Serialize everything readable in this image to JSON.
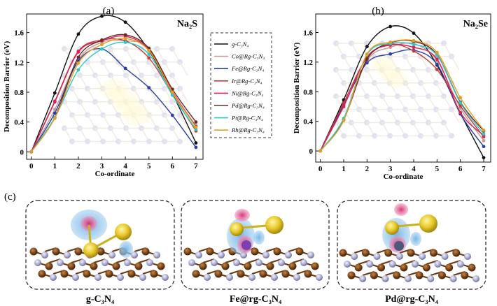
{
  "panels": {
    "a_label": "(a)",
    "b_label": "(b)",
    "c_label": "(c)"
  },
  "legend": {
    "entries": [
      {
        "label": "g-C₃N₄",
        "color": "#111111"
      },
      {
        "label": "Co@Rg-C₃N₄",
        "color": "#c89a8e"
      },
      {
        "label": "Fe@Rg-C₃N₄",
        "color": "#2b3fa6"
      },
      {
        "label": "Ir@Rg-C₃N₄",
        "color": "#c23a3a"
      },
      {
        "label": "Ni@Rg-C₃N₄",
        "color": "#d8205a"
      },
      {
        "label": "Pd@Rg-C₃N₄",
        "color": "#6b2a2a"
      },
      {
        "label": "Pt@Rg-C₃N₄",
        "color": "#2ec6c6"
      },
      {
        "label": "Rh@Rg-C₃N₄",
        "color": "#e0a020"
      }
    ]
  },
  "chart_data": [
    {
      "type": "line",
      "title": "Na₂S",
      "xlabel": "Co-ordinate",
      "ylabel": "Decomposition Barrier (eV)",
      "xlim": [
        -0.2,
        7.3
      ],
      "ylim": [
        -0.1,
        1.85
      ],
      "x": [
        0,
        1,
        2,
        3,
        4,
        5,
        6,
        7
      ],
      "xticks": [
        "0",
        "1",
        "2",
        "3",
        "4",
        "5",
        "6",
        "7"
      ],
      "yticks": [
        "0",
        "0.4",
        "0.8",
        "1.2",
        "1.6"
      ],
      "ytick_values": [
        0,
        0.4,
        0.8,
        1.2,
        1.6
      ],
      "series": [
        {
          "name": "g-C₃N₄",
          "values": [
            0,
            0.79,
            1.58,
            1.82,
            1.74,
            1.36,
            0.78,
            0.12
          ]
        },
        {
          "name": "Co@Rg-C₃N₄",
          "values": [
            0,
            0.57,
            1.24,
            1.47,
            1.49,
            1.39,
            0.79,
            0.35
          ]
        },
        {
          "name": "Fe@Rg-C₃N₄",
          "values": [
            0,
            0.52,
            1.22,
            1.38,
            1.12,
            0.86,
            0.49,
            0.06
          ]
        },
        {
          "name": "Ir@Rg-C₃N₄",
          "values": [
            0,
            0.68,
            1.35,
            1.5,
            1.49,
            1.26,
            0.77,
            0.28
          ]
        },
        {
          "name": "Ni@Rg-C₃N₄",
          "values": [
            0,
            0.67,
            1.34,
            1.49,
            1.55,
            1.37,
            0.81,
            0.34
          ]
        },
        {
          "name": "Pd@Rg-C₃N₄",
          "values": [
            0,
            0.46,
            1.27,
            1.5,
            1.57,
            1.39,
            0.84,
            0.4
          ]
        },
        {
          "name": "Pt@Rg-C₃N₄",
          "values": [
            0,
            0.46,
            1.1,
            1.38,
            1.47,
            1.31,
            0.76,
            0.3
          ]
        },
        {
          "name": "Rh@Rg-C₃N₄",
          "values": [
            0,
            0.45,
            1.19,
            1.44,
            1.52,
            1.36,
            0.8,
            0.33
          ]
        }
      ]
    },
    {
      "type": "line",
      "title": "Na₂Se",
      "xlabel": "Co-ordinate",
      "ylabel": "Decomposition Barrier (eV)",
      "xlim": [
        -0.2,
        7.3
      ],
      "ylim": [
        -0.15,
        1.85
      ],
      "x": [
        0,
        1,
        2,
        3,
        4,
        5,
        6,
        7
      ],
      "xticks": [
        "0",
        "1",
        "2",
        "3",
        "4",
        "5",
        "6",
        "7"
      ],
      "yticks": [
        "0",
        "0.4",
        "0.8",
        "1.2",
        "1.6"
      ],
      "ytick_values": [
        0,
        0.4,
        0.8,
        1.2,
        1.6
      ],
      "series": [
        {
          "name": "g-C₃N₄",
          "values": [
            0,
            0.69,
            1.41,
            1.68,
            1.59,
            1.16,
            0.51,
            -0.09
          ]
        },
        {
          "name": "Co@Rg-C₃N₄",
          "values": [
            0,
            0.43,
            1.22,
            1.4,
            1.45,
            1.22,
            0.58,
            0.14
          ]
        },
        {
          "name": "Fe@Rg-C₃N₄",
          "values": [
            0,
            0.62,
            1.19,
            1.31,
            1.36,
            1.17,
            0.5,
            0.06
          ]
        },
        {
          "name": "Ir@Rg-C₃N₄",
          "values": [
            0,
            0.65,
            1.26,
            1.44,
            1.35,
            1.1,
            0.61,
            0.19
          ]
        },
        {
          "name": "Ni@Rg-C₃N₄",
          "values": [
            0,
            0.6,
            1.27,
            1.43,
            1.4,
            1.24,
            0.52,
            0.21
          ]
        },
        {
          "name": "Pd@Rg-C₃N₄",
          "values": [
            0,
            0.42,
            1.24,
            1.46,
            1.48,
            1.3,
            0.66,
            0.27
          ]
        },
        {
          "name": "Pt@Rg-C₃N₄",
          "values": [
            0,
            0.44,
            1.3,
            1.45,
            1.44,
            1.29,
            0.65,
            0.23
          ]
        },
        {
          "name": "Rh@Rg-C₃N₄",
          "values": [
            0,
            0.41,
            1.31,
            1.47,
            1.49,
            1.33,
            0.72,
            0.28
          ]
        }
      ]
    }
  ],
  "structures": {
    "captions": [
      "g-C₃N₄",
      "Fe@rg-C₃N₄",
      "Pd@rg-C₃N₄"
    ]
  }
}
